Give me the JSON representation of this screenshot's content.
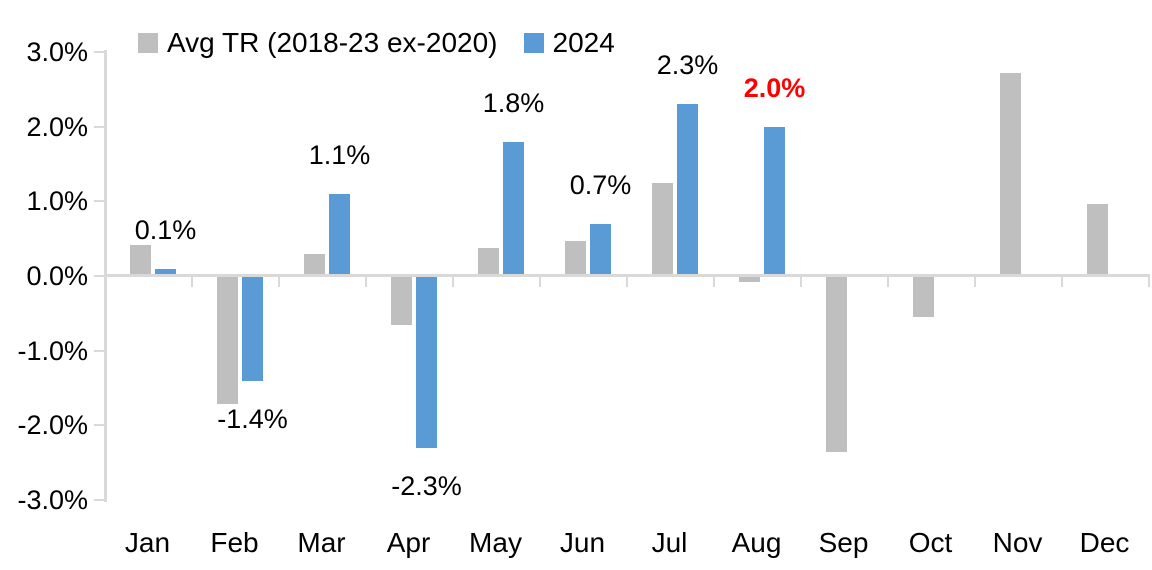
{
  "chart_data": {
    "type": "bar",
    "title": "",
    "categories": [
      "Jan",
      "Feb",
      "Mar",
      "Apr",
      "May",
      "Jun",
      "Jul",
      "Aug",
      "Sep",
      "Oct",
      "Nov",
      "Dec"
    ],
    "series": [
      {
        "name": "Avg TR (2018-23 ex-2020)",
        "color": "#BFBFBF",
        "values": [
          0.42,
          -1.72,
          0.3,
          -0.65,
          0.38,
          0.47,
          1.25,
          -0.08,
          -2.35,
          -0.55,
          2.72,
          0.97
        ]
      },
      {
        "name": "2024",
        "color": "#5B9BD5",
        "values": [
          0.1,
          -1.4,
          1.1,
          -2.3,
          1.8,
          0.7,
          2.3,
          2.0,
          null,
          null,
          null,
          null
        ]
      }
    ],
    "data_labels": [
      {
        "category": "Jan",
        "series": "2024",
        "text": "0.1%",
        "color": "#000000",
        "bold": false
      },
      {
        "category": "Feb",
        "series": "2024",
        "text": "-1.4%",
        "color": "#000000",
        "bold": false
      },
      {
        "category": "Mar",
        "series": "2024",
        "text": "1.1%",
        "color": "#000000",
        "bold": false
      },
      {
        "category": "Apr",
        "series": "2024",
        "text": "-2.3%",
        "color": "#000000",
        "bold": false
      },
      {
        "category": "May",
        "series": "2024",
        "text": "1.8%",
        "color": "#000000",
        "bold": false
      },
      {
        "category": "Jun",
        "series": "2024",
        "text": "0.7%",
        "color": "#000000",
        "bold": false
      },
      {
        "category": "Jul",
        "series": "2024",
        "text": "2.3%",
        "color": "#000000",
        "bold": false
      },
      {
        "category": "Aug",
        "series": "2024",
        "text": "2.0%",
        "color": "#FF0000",
        "bold": true
      }
    ],
    "y_axis": {
      "tick_labels": [
        "3.0%",
        "2.0%",
        "1.0%",
        "0.0%",
        "-1.0%",
        "-2.0%",
        "-3.0%"
      ],
      "min": -3.0,
      "max": 3.0,
      "step": 1.0,
      "unit": "%"
    },
    "legend": {
      "position": "top",
      "items": [
        {
          "label": "Avg TR (2018-23 ex-2020)",
          "color": "#BFBFBF"
        },
        {
          "label": "2024",
          "color": "#5B9BD5"
        }
      ]
    },
    "grid": false,
    "axis_color": "#D9D9D9",
    "text_color": "#000000",
    "highlight_color": "#FF0000",
    "background_color": "#FFFFFF"
  }
}
